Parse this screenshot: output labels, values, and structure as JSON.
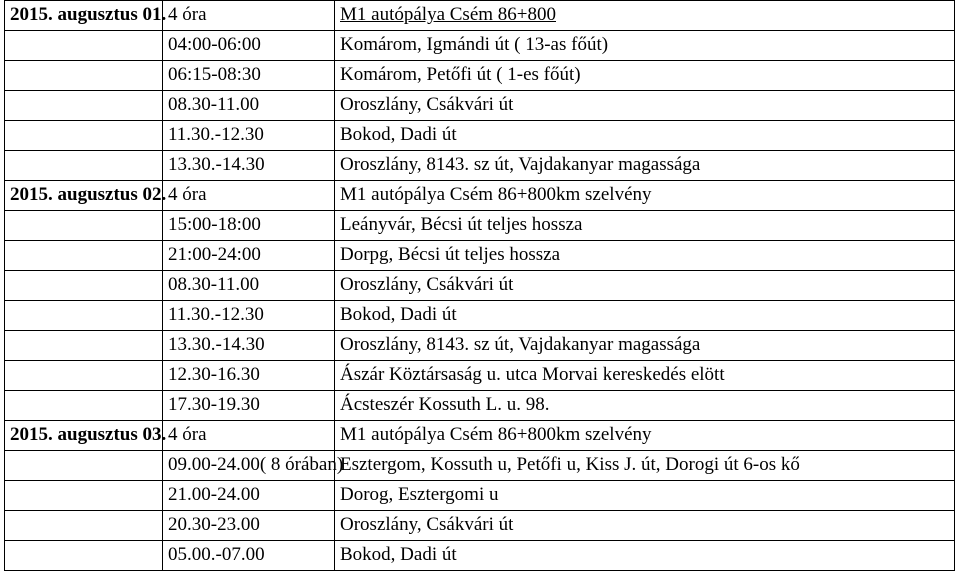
{
  "rows": [
    {
      "date": "2015. augusztus 01.",
      "time": "4 óra",
      "desc": "M1 autópálya Csém 86+800",
      "underline": true
    },
    {
      "date": "",
      "time": "04:00-06:00",
      "desc": "Komárom, Igmándi út ( 13-as főút)",
      "underline": false
    },
    {
      "date": "",
      "time": "06:15-08:30",
      "desc": "Komárom, Petőfi út ( 1-es főút)",
      "underline": false
    },
    {
      "date": "",
      "time": "08.30-11.00",
      "desc": "Oroszlány, Csákvári út",
      "underline": false
    },
    {
      "date": "",
      "time": "11.30.-12.30",
      "desc": "Bokod, Dadi út",
      "underline": false
    },
    {
      "date": "",
      "time": "13.30.-14.30",
      "desc": "Oroszlány, 8143. sz út, Vajdakanyar magassága",
      "underline": false
    },
    {
      "date": "2015. augusztus 02.",
      "time": "4 óra",
      "desc": "M1 autópálya Csém 86+800km szelvény",
      "underline": false
    },
    {
      "date": "",
      "time": "15:00-18:00",
      "desc": "Leányvár, Bécsi út teljes hossza",
      "underline": false
    },
    {
      "date": "",
      "time": "21:00-24:00",
      "desc": "Dorpg, Bécsi út teljes hossza",
      "underline": false
    },
    {
      "date": "",
      "time": "08.30-11.00",
      "desc": "Oroszlány, Csákvári út",
      "underline": false
    },
    {
      "date": "",
      "time": "11.30.-12.30",
      "desc": "Bokod, Dadi út",
      "underline": false
    },
    {
      "date": "",
      "time": "13.30.-14.30",
      "desc": "Oroszlány, 8143. sz út, Vajdakanyar magassága",
      "underline": false
    },
    {
      "date": "",
      "time": "12.30-16.30",
      "desc": "Ászár Köztársaság u. utca Morvai kereskedés elött",
      "underline": false
    },
    {
      "date": "",
      "time": "17.30-19.30",
      "desc": "Ácsteszér Kossuth L. u. 98.",
      "underline": false
    },
    {
      "date": "2015. augusztus 03.",
      "time": "4 óra",
      "desc": "M1 autópálya Csém 86+800km szelvény",
      "underline": false
    },
    {
      "date": "",
      "time": "09.00-24.00( 8 órában)",
      "desc": "Esztergom, Kossuth u, Petőfi u, Kiss J. út, Dorogi út 6-os kő",
      "underline": false
    },
    {
      "date": "",
      "time": "21.00-24.00",
      "desc": "Dorog, Esztergomi u",
      "underline": false
    },
    {
      "date": "",
      "time": "20.30-23.00",
      "desc": "Oroszlány, Csákvári út",
      "underline": false
    },
    {
      "date": "",
      "time": "05.00.-07.00",
      "desc": "Bokod, Dadi út",
      "underline": false
    }
  ],
  "colWidths": {
    "date": 158,
    "time": 172
  }
}
